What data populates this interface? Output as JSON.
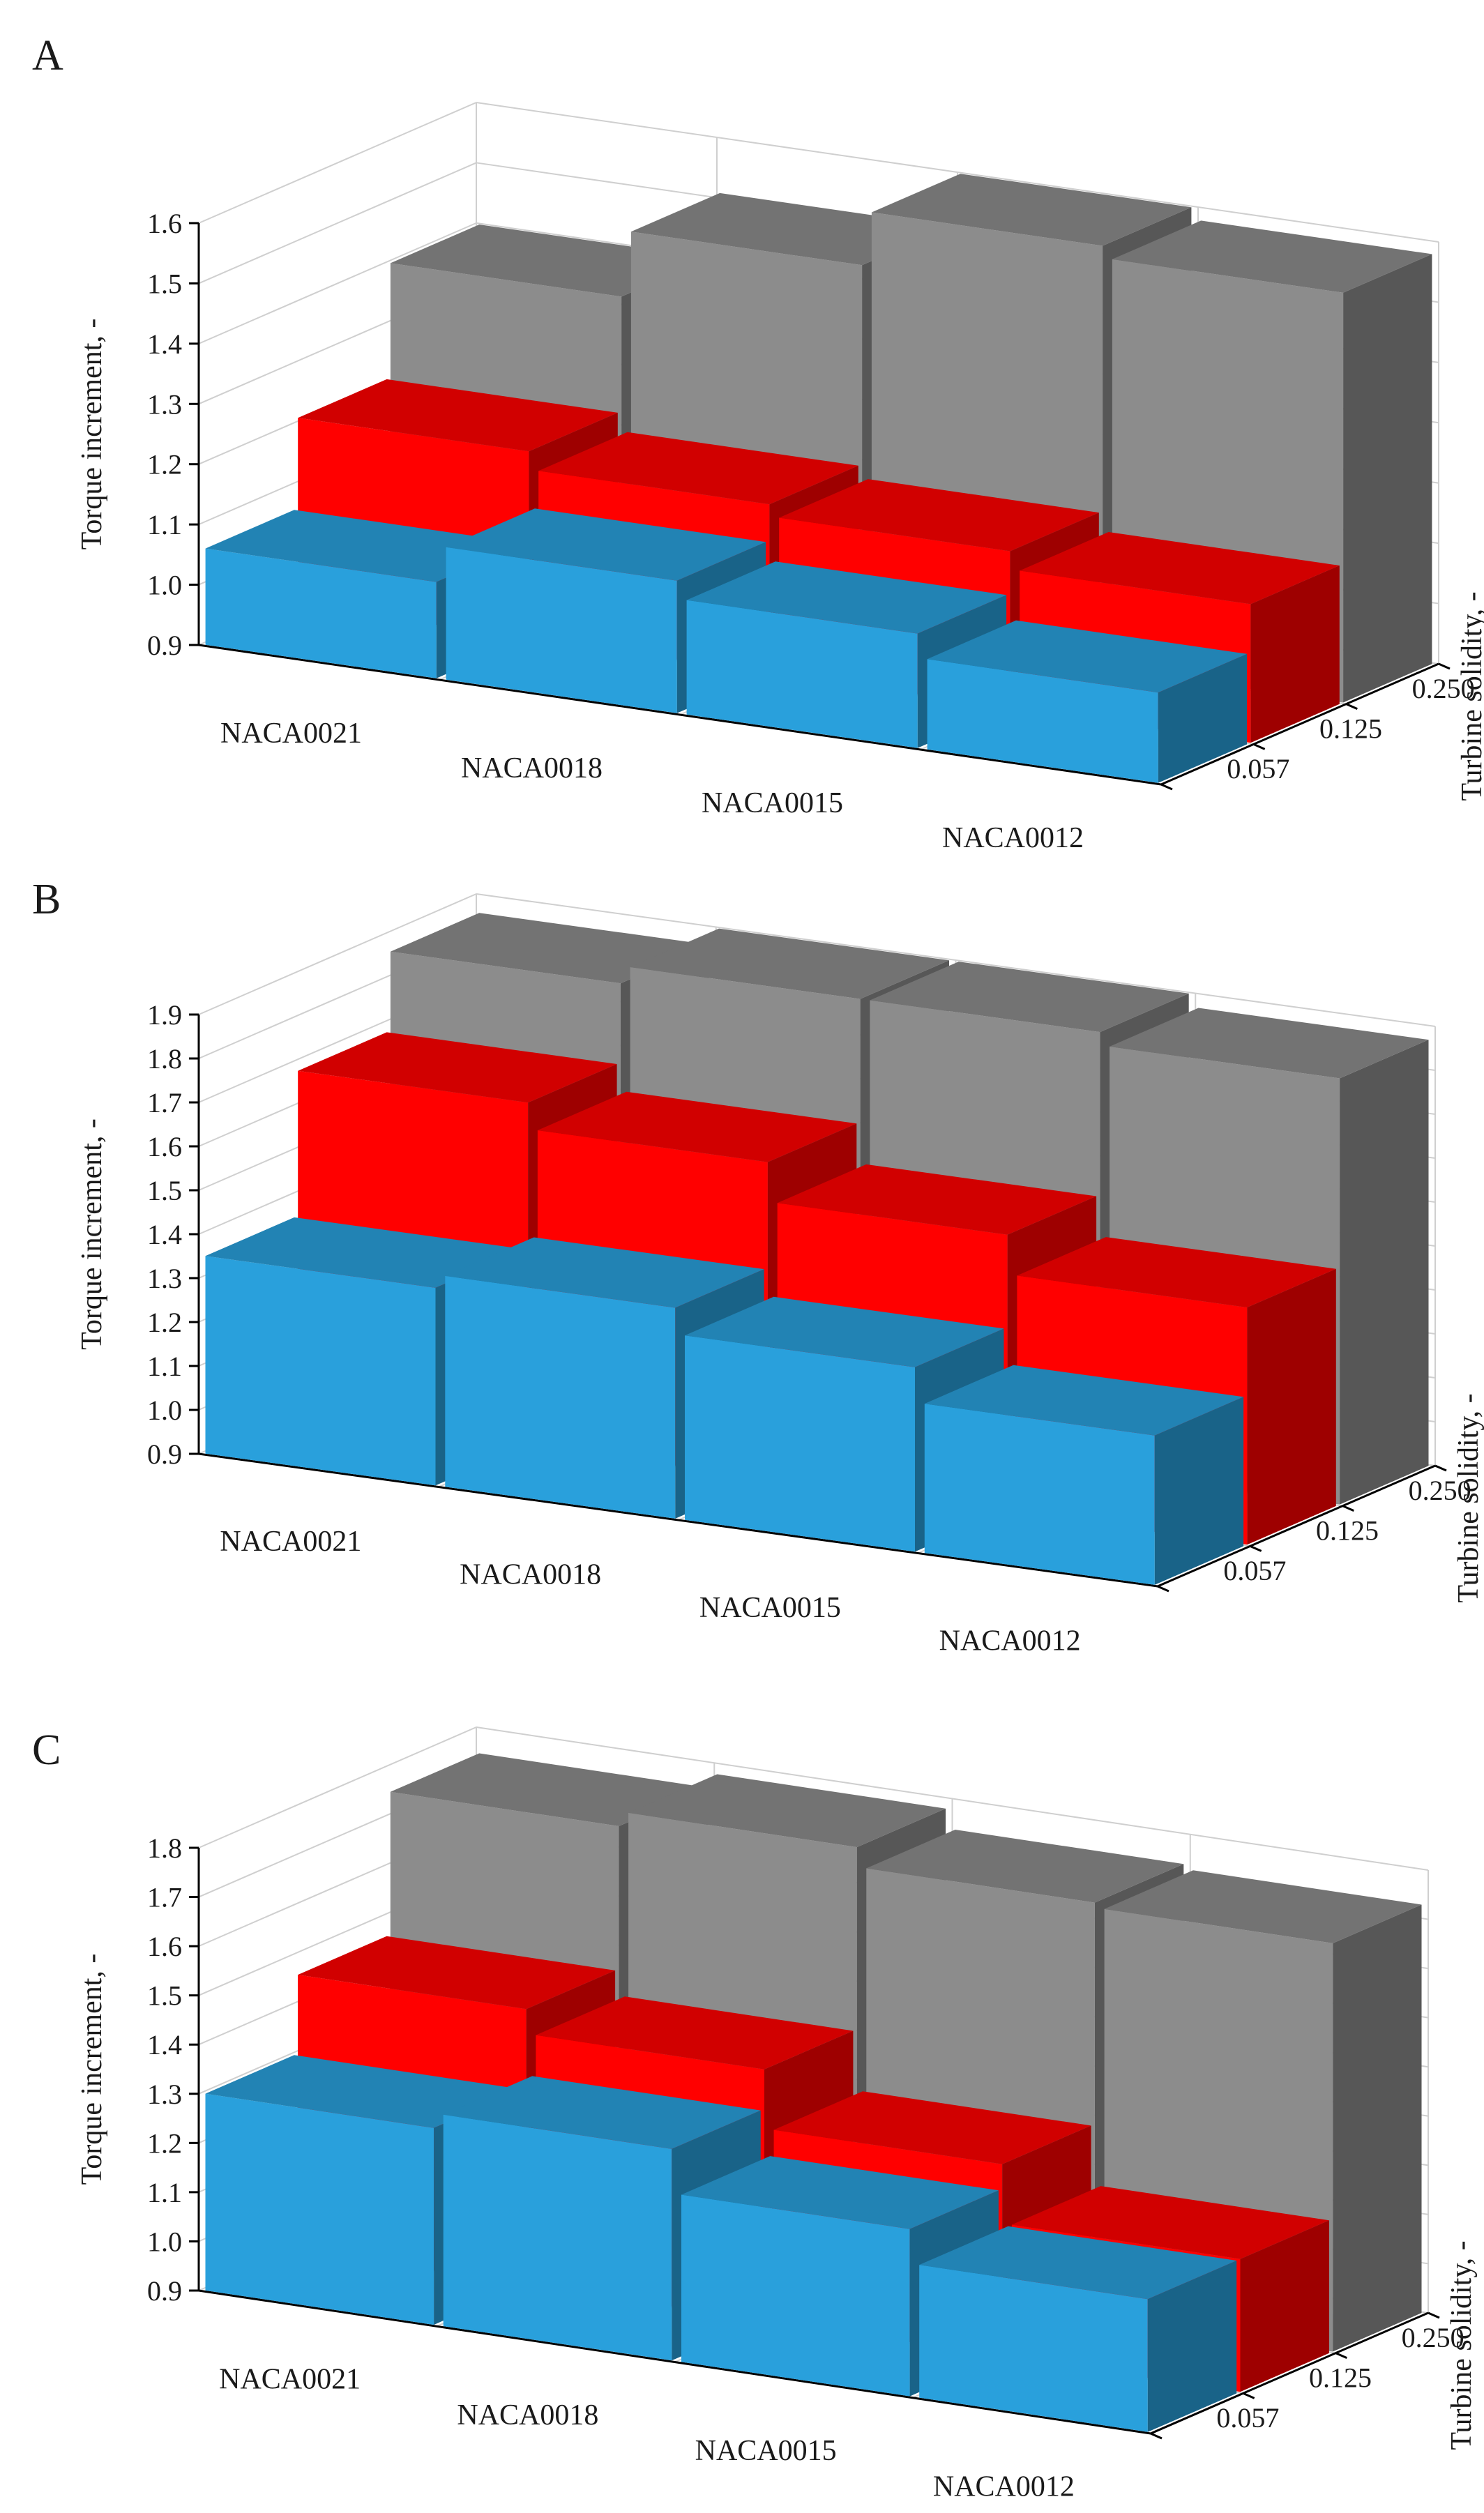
{
  "charts": [
    {
      "chart_data": {
        "panel": "A",
        "type": "bar",
        "subtype": "3d-bar",
        "categories": [
          "NACA0021",
          "NACA0018",
          "NACA0015",
          "NACA0012"
        ],
        "z_categories": [
          "0.057",
          "0.125",
          "0.250"
        ],
        "series": [
          {
            "values": [
              1.06,
              1.12,
              1.09,
              1.05
            ],
            "color": "#29a0dc"
          },
          {
            "values": [
              1.21,
              1.18,
              1.16,
              1.13
            ],
            "color": "#ff0000"
          },
          {
            "values": [
              1.4,
              1.51,
              1.6,
              1.58
            ],
            "color": "#8c8c8c"
          }
        ],
        "ylim": [
          0.9,
          1.6
        ],
        "yticks": [
          "0.9",
          "1.0",
          "1.1",
          "1.2",
          "1.3",
          "1.4",
          "1.5",
          "1.6"
        ],
        "ylabel": "Torque increment, -",
        "zlabel": "Turbine solidity, -",
        "grid": true
      }
    },
    {
      "chart_data": {
        "panel": "B",
        "type": "bar",
        "subtype": "3d-bar",
        "categories": [
          "NACA0021",
          "NACA0018",
          "NACA0015",
          "NACA0012"
        ],
        "z_categories": [
          "0.057",
          "0.125",
          "0.250"
        ],
        "series": [
          {
            "values": [
              1.35,
              1.38,
              1.32,
              1.24
            ],
            "color": "#29a0dc"
          },
          {
            "values": [
              1.68,
              1.62,
              1.53,
              1.44
            ],
            "color": "#ff0000"
          },
          {
            "values": [
              1.86,
              1.9,
              1.9,
              1.87
            ],
            "color": "#8c8c8c"
          }
        ],
        "ylim": [
          0.9,
          1.9
        ],
        "yticks": [
          "0.9",
          "1.0",
          "1.1",
          "1.2",
          "1.3",
          "1.4",
          "1.5",
          "1.6",
          "1.7",
          "1.8",
          "1.9"
        ],
        "ylabel": "Torque increment, -",
        "zlabel": "Turbine solidity, -",
        "grid": true
      }
    },
    {
      "chart_data": {
        "panel": "C",
        "type": "bar",
        "subtype": "3d-bar",
        "categories": [
          "NACA0021",
          "NACA0018",
          "NACA0015",
          "NACA0012"
        ],
        "z_categories": [
          "0.057",
          "0.125",
          "0.250"
        ],
        "series": [
          {
            "values": [
              1.3,
              1.33,
              1.24,
              1.17
            ],
            "color": "#29a0dc"
          },
          {
            "values": [
              1.46,
              1.41,
              1.29,
              1.17
            ],
            "color": "#ff0000"
          },
          {
            "values": [
              1.75,
              1.78,
              1.74,
              1.73
            ],
            "color": "#8c8c8c"
          }
        ],
        "ylim": [
          0.9,
          1.8
        ],
        "yticks": [
          "0.9",
          "1.0",
          "1.1",
          "1.2",
          "1.3",
          "1.4",
          "1.5",
          "1.6",
          "1.7",
          "1.8"
        ],
        "ylabel": "Torque increment, -",
        "zlabel": "Turbine solidity, -",
        "grid": true
      }
    }
  ]
}
